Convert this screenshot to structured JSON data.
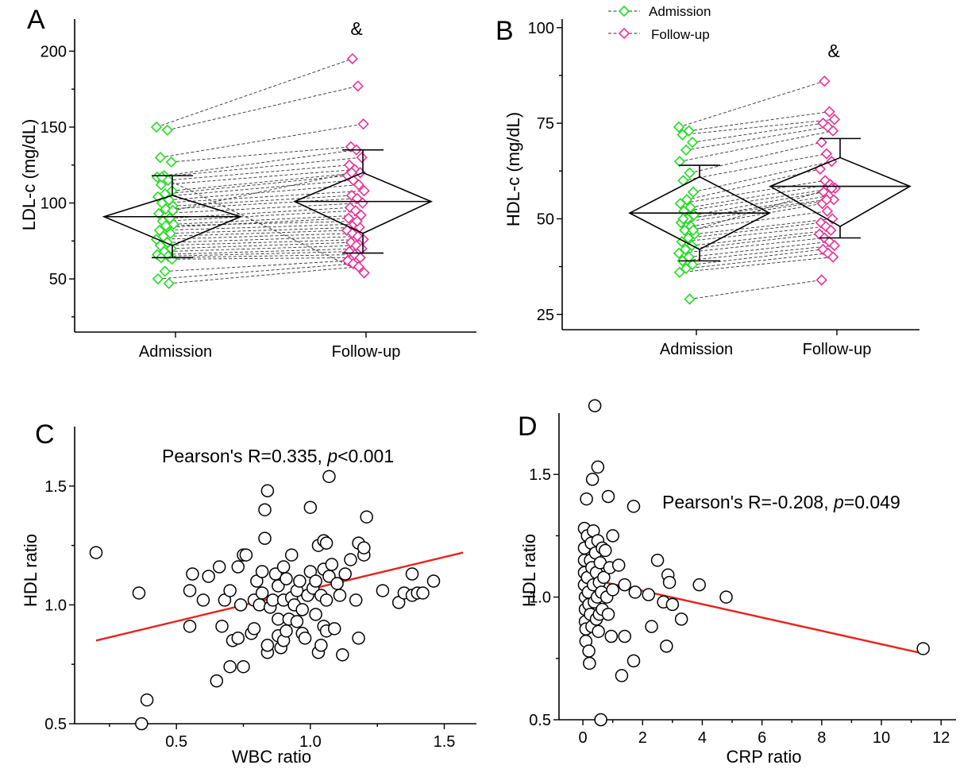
{
  "colors": {
    "admission": "#22dd22",
    "followup": "#e8339a",
    "fit_line": "#e8221c",
    "axis": "#000000"
  },
  "chart_data": [
    {
      "panel": "A",
      "type": "scatter",
      "ylabel": "LDL-c (mg/dL)",
      "categories": [
        "Admission",
        "Follow-up"
      ],
      "yticks": [
        50,
        100,
        150,
        200
      ],
      "ylim": [
        15,
        218
      ],
      "annotation": "&",
      "annotation_position": "above-follow-up",
      "markers": "diamond",
      "paired_lines": "dashed",
      "admission": [
        150,
        148,
        130,
        127,
        118,
        117,
        115,
        112,
        108,
        106,
        104,
        102,
        100,
        98,
        96,
        93,
        90,
        88,
        86,
        84,
        82,
        80,
        78,
        76,
        74,
        72,
        70,
        68,
        66,
        65,
        64,
        63,
        55,
        50,
        47,
        117,
        95,
        85
      ],
      "followup": [
        195,
        177,
        152,
        137,
        135,
        130,
        125,
        122,
        120,
        118,
        115,
        112,
        108,
        105,
        103,
        100,
        97,
        95,
        92,
        90,
        86,
        84,
        82,
        80,
        78,
        76,
        74,
        72,
        70,
        68,
        66,
        64,
        62,
        60,
        58,
        54,
        120,
        88
      ],
      "summary": {
        "admission": {
          "mean": 91,
          "sd_upper": 118,
          "sd_lower": 64,
          "diamond_top": 105,
          "diamond_bottom": 72
        },
        "followup": {
          "mean": 101,
          "sd_upper": 135,
          "sd_lower": 67,
          "diamond_top": 120,
          "diamond_bottom": 80
        }
      }
    },
    {
      "panel": "B",
      "type": "scatter",
      "ylabel": "HDL-c (mg/dL)",
      "categories": [
        "Admission",
        "Follow-up"
      ],
      "yticks": [
        25,
        50,
        75,
        100
      ],
      "ylim": [
        21,
        101
      ],
      "legend": {
        "position": "top",
        "entries": [
          "Admission",
          "Follow-up"
        ]
      },
      "annotation": "&",
      "annotation_position": "above-follow-up",
      "markers": "diamond",
      "paired_lines": "dashed",
      "admission": [
        74,
        73,
        72,
        70,
        68,
        65,
        62,
        60,
        57,
        55,
        54,
        53,
        52,
        51,
        50,
        49,
        48,
        47,
        46,
        45,
        44,
        43,
        42,
        41,
        40,
        39,
        38,
        37,
        36,
        29,
        50,
        47
      ],
      "followup": [
        86,
        78,
        76,
        75,
        74,
        73,
        70,
        67,
        65,
        63,
        60,
        59,
        58,
        57,
        56,
        55,
        54,
        52,
        50,
        49,
        48,
        47,
        46,
        45,
        44,
        43,
        42,
        41,
        40,
        34,
        55,
        58
      ],
      "summary": {
        "admission": {
          "mean": 51.5,
          "sd_upper": 64,
          "sd_lower": 39,
          "diamond_top": 61,
          "diamond_bottom": 42
        },
        "followup": {
          "mean": 58.5,
          "sd_upper": 71,
          "sd_lower": 45,
          "diamond_top": 66,
          "diamond_bottom": 48
        }
      }
    },
    {
      "panel": "C",
      "type": "scatter",
      "xlabel": "WBC ratio",
      "ylabel": "HDL ratio",
      "xticks": [
        0.5,
        1.0,
        1.5
      ],
      "xtick_labels": [
        "0.5",
        "1.0",
        "1.5"
      ],
      "yticks": [
        0.5,
        1.0,
        1.5
      ],
      "ytick_labels": [
        "0.5",
        "1.0",
        "1.5"
      ],
      "xlim": [
        0.12,
        1.62
      ],
      "ylim": [
        0.5,
        1.75
      ],
      "annotation": {
        "text": "Pearson's R=0.335, ",
        "p_symbol": "p",
        "p_text": "<0.001"
      },
      "fit_line": {
        "x": [
          0.2,
          1.57
        ],
        "y": [
          0.85,
          1.22
        ]
      },
      "points": [
        [
          0.2,
          1.22
        ],
        [
          0.36,
          1.05
        ],
        [
          0.37,
          0.5
        ],
        [
          0.39,
          0.6
        ],
        [
          0.55,
          0.91
        ],
        [
          0.55,
          1.06
        ],
        [
          0.56,
          1.13
        ],
        [
          0.6,
          1.02
        ],
        [
          0.62,
          1.12
        ],
        [
          0.65,
          0.68
        ],
        [
          0.66,
          1.16
        ],
        [
          0.67,
          0.91
        ],
        [
          0.68,
          1.02
        ],
        [
          0.7,
          0.74
        ],
        [
          0.7,
          1.06
        ],
        [
          0.71,
          0.85
        ],
        [
          0.73,
          1.16
        ],
        [
          0.73,
          0.86
        ],
        [
          0.74,
          1.0
        ],
        [
          0.75,
          0.74
        ],
        [
          0.75,
          1.21
        ],
        [
          0.76,
          1.21
        ],
        [
          0.78,
          0.88
        ],
        [
          0.79,
          1.02
        ],
        [
          0.79,
          0.9
        ],
        [
          0.8,
          1.1
        ],
        [
          0.81,
          1.0
        ],
        [
          0.82,
          1.05
        ],
        [
          0.82,
          1.14
        ],
        [
          0.83,
          1.4
        ],
        [
          0.83,
          1.28
        ],
        [
          0.84,
          1.48
        ],
        [
          0.84,
          0.8
        ],
        [
          0.84,
          0.83
        ],
        [
          0.85,
          0.99
        ],
        [
          0.86,
          1.02
        ],
        [
          0.87,
          1.13
        ],
        [
          0.88,
          1.08
        ],
        [
          0.88,
          0.94
        ],
        [
          0.88,
          0.87
        ],
        [
          0.89,
          0.82
        ],
        [
          0.9,
          1.16
        ],
        [
          0.9,
          1.02
        ],
        [
          0.9,
          0.85
        ],
        [
          0.91,
          0.89
        ],
        [
          0.91,
          1.11
        ],
        [
          0.92,
          0.94
        ],
        [
          0.93,
          1.21
        ],
        [
          0.93,
          1.03
        ],
        [
          0.94,
          1.0
        ],
        [
          0.95,
          1.06
        ],
        [
          0.95,
          0.93
        ],
        [
          0.96,
          1.1
        ],
        [
          0.97,
          0.98
        ],
        [
          0.97,
          0.88
        ],
        [
          0.98,
          0.86
        ],
        [
          0.99,
          1.04
        ],
        [
          1.0,
          1.41
        ],
        [
          1.0,
          1.14
        ],
        [
          1.01,
          1.07
        ],
        [
          1.02,
          0.96
        ],
        [
          1.02,
          1.1
        ],
        [
          1.03,
          0.8
        ],
        [
          1.03,
          1.25
        ],
        [
          1.04,
          1.04
        ],
        [
          1.04,
          0.83
        ],
        [
          1.05,
          0.91
        ],
        [
          1.05,
          1.15
        ],
        [
          1.05,
          1.27
        ],
        [
          1.06,
          1.26
        ],
        [
          1.06,
          1.02
        ],
        [
          1.06,
          0.89
        ],
        [
          1.07,
          1.54
        ],
        [
          1.07,
          1.12
        ],
        [
          1.08,
          1.17
        ],
        [
          1.09,
          0.9
        ],
        [
          1.1,
          1.09
        ],
        [
          1.11,
          1.04
        ],
        [
          1.12,
          0.79
        ],
        [
          1.13,
          1.13
        ],
        [
          1.15,
          1.19
        ],
        [
          1.17,
          1.02
        ],
        [
          1.18,
          1.26
        ],
        [
          1.18,
          0.86
        ],
        [
          1.2,
          1.21
        ],
        [
          1.2,
          1.24
        ],
        [
          1.21,
          1.37
        ],
        [
          1.27,
          1.06
        ],
        [
          1.33,
          1.01
        ],
        [
          1.35,
          1.05
        ],
        [
          1.38,
          1.13
        ],
        [
          1.38,
          1.04
        ],
        [
          1.4,
          1.05
        ],
        [
          1.42,
          1.05
        ],
        [
          1.46,
          1.1
        ]
      ]
    },
    {
      "panel": "D",
      "type": "scatter",
      "xlabel": "CRP ratio",
      "ylabel": "HDL ratio",
      "xticks": [
        0,
        2,
        4,
        6,
        8,
        10,
        12
      ],
      "xtick_labels": [
        "0",
        "2",
        "4",
        "6",
        "8",
        "10",
        "12"
      ],
      "yticks": [
        0.5,
        1.0,
        1.5
      ],
      "ytick_labels": [
        "0.5",
        "1.0",
        "1.5"
      ],
      "xlim": [
        -0.8,
        12.5
      ],
      "ylim": [
        0.5,
        1.75
      ],
      "annotation": {
        "text": "Pearson's R=-0.208, ",
        "p_symbol": "p",
        "p_text": "=0.049"
      },
      "fit_line": {
        "x": [
          0.0,
          11.4
        ],
        "y": [
          1.08,
          0.77
        ]
      },
      "points": [
        [
          0.05,
          1.28
        ],
        [
          0.05,
          1.2
        ],
        [
          0.05,
          1.15
        ],
        [
          0.05,
          1.1
        ],
        [
          0.05,
          1.05
        ],
        [
          0.08,
          1.0
        ],
        [
          0.08,
          0.95
        ],
        [
          0.08,
          0.9
        ],
        [
          0.1,
          0.87
        ],
        [
          0.1,
          0.82
        ],
        [
          0.12,
          1.4
        ],
        [
          0.15,
          1.25
        ],
        [
          0.15,
          1.08
        ],
        [
          0.18,
          1.02
        ],
        [
          0.2,
          0.97
        ],
        [
          0.2,
          0.78
        ],
        [
          0.22,
          0.73
        ],
        [
          0.25,
          1.15
        ],
        [
          0.25,
          0.93
        ],
        [
          0.28,
          1.22
        ],
        [
          0.3,
          1.12
        ],
        [
          0.3,
          0.88
        ],
        [
          0.32,
          1.48
        ],
        [
          0.35,
          1.27
        ],
        [
          0.35,
          1.05
        ],
        [
          0.38,
          0.98
        ],
        [
          0.4,
          1.78
        ],
        [
          0.42,
          1.18
        ],
        [
          0.45,
          1.1
        ],
        [
          0.45,
          0.91
        ],
        [
          0.48,
          1.0
        ],
        [
          0.5,
          1.53
        ],
        [
          0.5,
          1.23
        ],
        [
          0.52,
          0.86
        ],
        [
          0.55,
          1.06
        ],
        [
          0.55,
          0.93
        ],
        [
          0.58,
          1.14
        ],
        [
          0.6,
          0.5
        ],
        [
          0.62,
          1.02
        ],
        [
          0.65,
          1.2
        ],
        [
          0.65,
          0.95
        ],
        [
          0.7,
          1.08
        ],
        [
          0.75,
          1.19
        ],
        [
          0.8,
          1.0
        ],
        [
          0.85,
          1.41
        ],
        [
          0.85,
          0.93
        ],
        [
          0.9,
          1.12
        ],
        [
          0.95,
          0.84
        ],
        [
          1.0,
          1.25
        ],
        [
          1.0,
          1.03
        ],
        [
          1.2,
          1.13
        ],
        [
          1.3,
          0.68
        ],
        [
          1.4,
          1.05
        ],
        [
          1.4,
          0.84
        ],
        [
          1.7,
          1.37
        ],
        [
          1.7,
          0.74
        ],
        [
          1.75,
          1.02
        ],
        [
          2.2,
          1.01
        ],
        [
          2.3,
          0.88
        ],
        [
          2.5,
          1.15
        ],
        [
          2.7,
          0.98
        ],
        [
          2.8,
          0.8
        ],
        [
          2.85,
          1.09
        ],
        [
          2.9,
          1.06
        ],
        [
          3.0,
          0.97
        ],
        [
          3.3,
          0.91
        ],
        [
          3.9,
          1.05
        ],
        [
          4.8,
          1.0
        ],
        [
          11.4,
          0.79
        ]
      ]
    }
  ]
}
